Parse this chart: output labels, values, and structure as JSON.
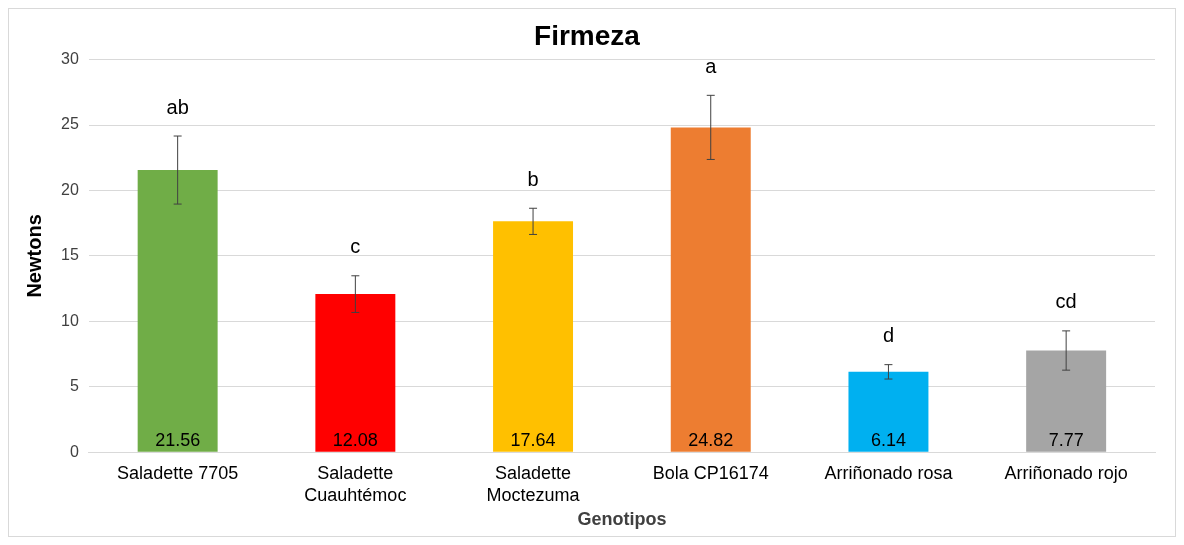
{
  "chart_data": {
    "type": "bar",
    "title": "Firmeza",
    "xlabel": "Genotipos",
    "ylabel": "Newtons",
    "categories": [
      "Saladette 7705",
      "Saladette Cuauhtémoc",
      "Saladette Moctezuma",
      "Bola CP16174",
      "Arriñonado rosa",
      "Arriñonado rojo"
    ],
    "values": [
      21.56,
      12.08,
      17.64,
      24.82,
      6.14,
      7.77
    ],
    "colors": [
      "#70ad47",
      "#ff0000",
      "#ffc000",
      "#ed7d31",
      "#00b0f0",
      "#a5a5a5"
    ],
    "errors": [
      2.6,
      1.4,
      1.0,
      2.45,
      0.55,
      1.5
    ],
    "data_labels": true,
    "annotations": [
      "ab",
      "c",
      "b",
      "a",
      "d",
      "cd"
    ],
    "ylim": [
      0,
      30
    ],
    "yticks": [
      0,
      5,
      10,
      15,
      20,
      25,
      30
    ],
    "grid": "y",
    "legend": false
  }
}
